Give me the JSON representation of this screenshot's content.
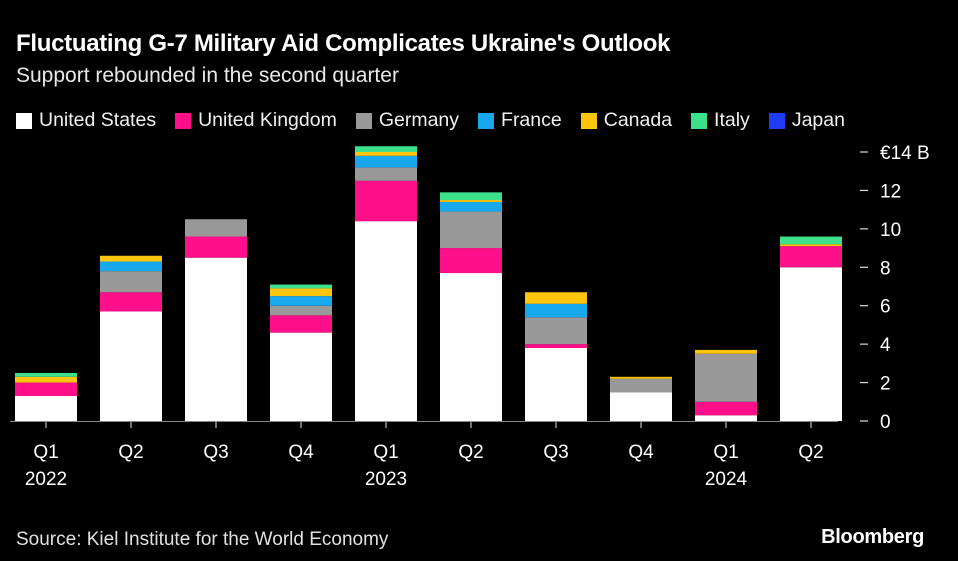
{
  "title": "Fluctuating G-7 Military Aid Complicates Ukraine's Outlook",
  "subtitle": "Support rebounded in the second quarter",
  "source": "Source: Kiel Institute for the World Economy",
  "brand": "Bloomberg",
  "legend": [
    {
      "name": "United States",
      "color": "#ffffff"
    },
    {
      "name": "United Kingdom",
      "color": "#ff0f8a"
    },
    {
      "name": "Germany",
      "color": "#999999"
    },
    {
      "name": "France",
      "color": "#18a8ee"
    },
    {
      "name": "Canada",
      "color": "#ffc40c"
    },
    {
      "name": "Italy",
      "color": "#3fe08c"
    },
    {
      "name": "Japan",
      "color": "#1f3cf5"
    }
  ],
  "chart_data": {
    "type": "bar",
    "stacked": true,
    "title": "Fluctuating G-7 Military Aid Complicates Ukraine's Outlook",
    "subtitle": "Support rebounded in the second quarter",
    "categories": [
      "Q1",
      "Q2",
      "Q3",
      "Q4",
      "Q1",
      "Q2",
      "Q3",
      "Q4",
      "Q1",
      "Q2"
    ],
    "year_labels": [
      "2022",
      "",
      "",
      "",
      "2023",
      "",
      "",
      "",
      "2024",
      ""
    ],
    "ylim": [
      0,
      14
    ],
    "yticks": [
      0,
      2,
      4,
      6,
      8,
      10,
      12,
      14
    ],
    "ytick_labels": [
      "0",
      "2",
      "4",
      "6",
      "8",
      "10",
      "12",
      "€14 B"
    ],
    "yaxis_position": "right",
    "series": [
      {
        "name": "United States",
        "color": "#ffffff",
        "values": [
          1.3,
          5.7,
          8.5,
          4.6,
          10.4,
          7.7,
          3.8,
          1.5,
          0.3,
          8.0
        ]
      },
      {
        "name": "United Kingdom",
        "color": "#ff0f8a",
        "values": [
          0.7,
          1.0,
          1.1,
          0.9,
          2.1,
          1.3,
          0.2,
          0.0,
          0.7,
          1.1
        ]
      },
      {
        "name": "Germany",
        "color": "#999999",
        "values": [
          0.0,
          1.1,
          0.9,
          0.5,
          0.7,
          1.9,
          1.4,
          0.7,
          2.5,
          0.0
        ]
      },
      {
        "name": "France",
        "color": "#18a8ee",
        "values": [
          0.0,
          0.5,
          0.0,
          0.5,
          0.6,
          0.5,
          0.7,
          0.0,
          0.0,
          0.0
        ]
      },
      {
        "name": "Canada",
        "color": "#ffc40c",
        "values": [
          0.3,
          0.3,
          0.0,
          0.4,
          0.2,
          0.1,
          0.6,
          0.1,
          0.2,
          0.1
        ]
      },
      {
        "name": "Italy",
        "color": "#3fe08c",
        "values": [
          0.2,
          0.0,
          0.0,
          0.2,
          0.3,
          0.4,
          0.0,
          0.0,
          0.0,
          0.4
        ]
      },
      {
        "name": "Japan",
        "color": "#1f3cf5",
        "values": [
          0.0,
          0.0,
          0.0,
          0.0,
          0.0,
          0.0,
          0.0,
          0.0,
          0.0,
          0.0
        ]
      }
    ]
  }
}
